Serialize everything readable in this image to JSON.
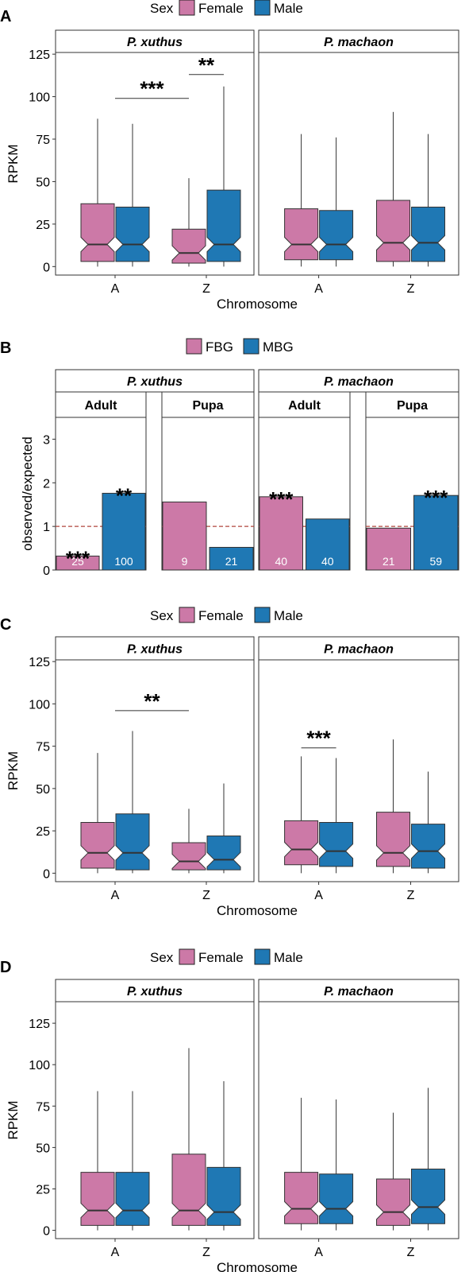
{
  "colors": {
    "female": "#cc79a7",
    "male": "#1f78b4",
    "ref_line": "#b2473e"
  },
  "chart_data": [
    {
      "panel": "A",
      "type": "boxplot",
      "legend": {
        "title": "Sex",
        "entries": [
          "Female",
          "Male"
        ]
      },
      "facets": [
        "P. xuthus",
        "P. machaon"
      ],
      "categories": [
        "A",
        "Z"
      ],
      "xlabel": "Chromosome",
      "ylabel": "RPKM",
      "ylim": [
        -5,
        126
      ],
      "yticks": [
        0,
        25,
        50,
        75,
        100,
        125
      ],
      "boxes": [
        {
          "facet": 0,
          "cat": 0,
          "sex": "Female",
          "min": 0,
          "q1": 3,
          "median": 13,
          "q3": 37,
          "max": 87
        },
        {
          "facet": 0,
          "cat": 0,
          "sex": "Male",
          "min": 0,
          "q1": 3,
          "median": 13,
          "q3": 35,
          "max": 84
        },
        {
          "facet": 0,
          "cat": 1,
          "sex": "Female",
          "min": 0,
          "q1": 2,
          "median": 8,
          "q3": 22,
          "max": 52
        },
        {
          "facet": 0,
          "cat": 1,
          "sex": "Male",
          "min": 0,
          "q1": 3,
          "median": 13,
          "q3": 45,
          "max": 106
        },
        {
          "facet": 1,
          "cat": 0,
          "sex": "Female",
          "min": 0,
          "q1": 4,
          "median": 13,
          "q3": 34,
          "max": 78
        },
        {
          "facet": 1,
          "cat": 0,
          "sex": "Male",
          "min": 0,
          "q1": 4,
          "median": 13,
          "q3": 33,
          "max": 76
        },
        {
          "facet": 1,
          "cat": 1,
          "sex": "Female",
          "min": 0,
          "q1": 3,
          "median": 14,
          "q3": 39,
          "max": 91
        },
        {
          "facet": 1,
          "cat": 1,
          "sex": "Male",
          "min": 0,
          "q1": 3,
          "median": 14,
          "q3": 35,
          "max": 78
        }
      ],
      "annotations": [
        {
          "facet": 0,
          "from": [
            0,
            "center"
          ],
          "to": [
            1,
            "Female"
          ],
          "y": 99,
          "label": "***"
        },
        {
          "facet": 0,
          "from": [
            1,
            "Female"
          ],
          "to": [
            1,
            "Male"
          ],
          "y": 113,
          "label": "**"
        }
      ]
    },
    {
      "panel": "B",
      "type": "bar",
      "legend": {
        "title": "",
        "entries": [
          "FBG",
          "MBG"
        ]
      },
      "facets": [
        "P. xuthus",
        "P. machaon"
      ],
      "subfacets": [
        "Adult",
        "Pupa"
      ],
      "ylabel": "observed/expected",
      "ylim": [
        0,
        3.5
      ],
      "yticks": [
        0,
        1,
        2,
        3
      ],
      "reference_line": 1,
      "bars": [
        {
          "facet": 0,
          "sub": 0,
          "group": "FBG",
          "value": 0.32,
          "count": "25",
          "sig": "***"
        },
        {
          "facet": 0,
          "sub": 0,
          "group": "MBG",
          "value": 1.76,
          "count": "100",
          "sig": "**"
        },
        {
          "facet": 0,
          "sub": 1,
          "group": "FBG",
          "value": 1.56,
          "count": "9",
          "sig": ""
        },
        {
          "facet": 0,
          "sub": 1,
          "group": "MBG",
          "value": 0.52,
          "count": "21",
          "sig": ""
        },
        {
          "facet": 1,
          "sub": 0,
          "group": "FBG",
          "value": 1.68,
          "count": "40",
          "sig": "***"
        },
        {
          "facet": 1,
          "sub": 0,
          "group": "MBG",
          "value": 1.17,
          "count": "40",
          "sig": ""
        },
        {
          "facet": 1,
          "sub": 1,
          "group": "FBG",
          "value": 0.96,
          "count": "21",
          "sig": ""
        },
        {
          "facet": 1,
          "sub": 1,
          "group": "MBG",
          "value": 1.71,
          "count": "59",
          "sig": "***"
        }
      ]
    },
    {
      "panel": "C",
      "type": "boxplot",
      "legend": {
        "title": "Sex",
        "entries": [
          "Female",
          "Male"
        ]
      },
      "facets": [
        "P. xuthus",
        "P. machaon"
      ],
      "categories": [
        "A",
        "Z"
      ],
      "xlabel": "Chromosome",
      "ylabel": "RPKM",
      "ylim": [
        -5,
        126
      ],
      "yticks": [
        0,
        25,
        50,
        75,
        100,
        125
      ],
      "boxes": [
        {
          "facet": 0,
          "cat": 0,
          "sex": "Female",
          "min": 0,
          "q1": 3,
          "median": 12,
          "q3": 30,
          "max": 71
        },
        {
          "facet": 0,
          "cat": 0,
          "sex": "Male",
          "min": 0,
          "q1": 2,
          "median": 12,
          "q3": 35,
          "max": 84
        },
        {
          "facet": 0,
          "cat": 1,
          "sex": "Female",
          "min": 0,
          "q1": 2,
          "median": 7,
          "q3": 18,
          "max": 38
        },
        {
          "facet": 0,
          "cat": 1,
          "sex": "Male",
          "min": 0,
          "q1": 2,
          "median": 8,
          "q3": 22,
          "max": 53
        },
        {
          "facet": 1,
          "cat": 0,
          "sex": "Female",
          "min": 0,
          "q1": 5,
          "median": 14,
          "q3": 31,
          "max": 69
        },
        {
          "facet": 1,
          "cat": 0,
          "sex": "Male",
          "min": 0,
          "q1": 4,
          "median": 13,
          "q3": 30,
          "max": 68
        },
        {
          "facet": 1,
          "cat": 1,
          "sex": "Female",
          "min": 0,
          "q1": 4,
          "median": 12,
          "q3": 36,
          "max": 79
        },
        {
          "facet": 1,
          "cat": 1,
          "sex": "Male",
          "min": 0,
          "q1": 3,
          "median": 13,
          "q3": 29,
          "max": 60
        }
      ],
      "annotations": [
        {
          "facet": 0,
          "from": [
            0,
            "center"
          ],
          "to": [
            1,
            "Female"
          ],
          "y": 96,
          "label": "**"
        },
        {
          "facet": 1,
          "from": [
            0,
            "Female"
          ],
          "to": [
            0,
            "Male"
          ],
          "y": 74,
          "label": "***"
        }
      ]
    },
    {
      "panel": "D",
      "type": "boxplot",
      "legend": {
        "title": "Sex",
        "entries": [
          "Female",
          "Male"
        ]
      },
      "facets": [
        "P. xuthus",
        "P. machaon"
      ],
      "categories": [
        "A",
        "Z"
      ],
      "xlabel": "Chromosome",
      "ylabel": "RPKM",
      "ylim": [
        -5,
        138
      ],
      "yticks": [
        0,
        25,
        50,
        75,
        100,
        125
      ],
      "boxes": [
        {
          "facet": 0,
          "cat": 0,
          "sex": "Female",
          "min": 0,
          "q1": 3,
          "median": 12,
          "q3": 35,
          "max": 84
        },
        {
          "facet": 0,
          "cat": 0,
          "sex": "Male",
          "min": 0,
          "q1": 3,
          "median": 12,
          "q3": 35,
          "max": 84
        },
        {
          "facet": 0,
          "cat": 1,
          "sex": "Female",
          "min": 0,
          "q1": 3,
          "median": 12,
          "q3": 46,
          "max": 110
        },
        {
          "facet": 0,
          "cat": 1,
          "sex": "Male",
          "min": 0,
          "q1": 3,
          "median": 11,
          "q3": 38,
          "max": 90
        },
        {
          "facet": 1,
          "cat": 0,
          "sex": "Female",
          "min": 0,
          "q1": 4,
          "median": 13,
          "q3": 35,
          "max": 80
        },
        {
          "facet": 1,
          "cat": 0,
          "sex": "Male",
          "min": 0,
          "q1": 4,
          "median": 13,
          "q3": 34,
          "max": 79
        },
        {
          "facet": 1,
          "cat": 1,
          "sex": "Female",
          "min": 0,
          "q1": 3,
          "median": 11,
          "q3": 31,
          "max": 71
        },
        {
          "facet": 1,
          "cat": 1,
          "sex": "Male",
          "min": 0,
          "q1": 4,
          "median": 14,
          "q3": 37,
          "max": 86
        }
      ],
      "annotations": []
    }
  ]
}
